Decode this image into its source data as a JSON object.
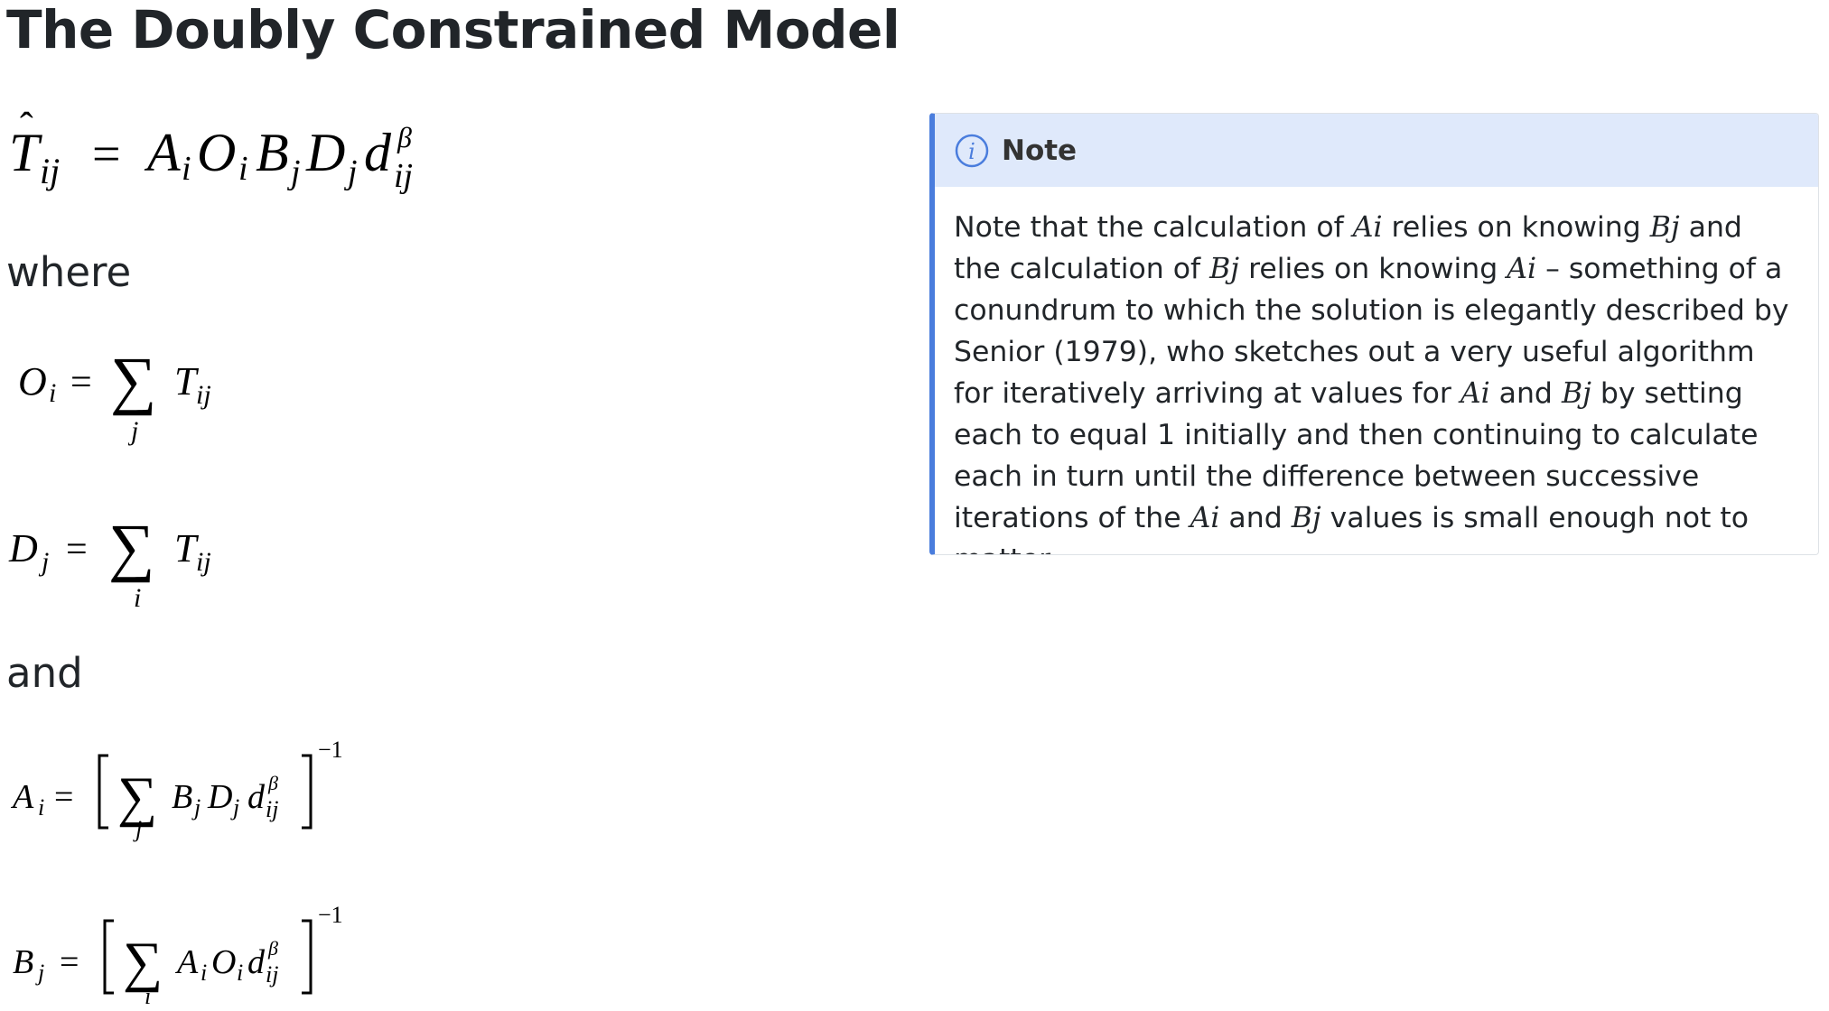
{
  "page": {
    "title": "The Doubly Constrained Model",
    "where_text": "where",
    "and_text": "and"
  },
  "equations": {
    "main": "T̂ij = Ai Oi Bj Dj dij^β",
    "origin_total": "Oi = Σj Tij",
    "destination_total": "Dj = Σi Tij",
    "balancing_a": "Ai = [Σj Bj Dj dij^β]^−1",
    "balancing_b": "Bj = [Σi Ai Oi dij^β]^−1"
  },
  "note": {
    "title": "Note",
    "icon": "info-icon",
    "accent_color": "#4a7ddd",
    "header_bg": "#dfe9fb",
    "segments": [
      {
        "text": "Note that the calculation of ",
        "italic": false
      },
      {
        "text": "Ai",
        "italic": true
      },
      {
        "text": " relies on knowing ",
        "italic": false
      },
      {
        "text": "Bj",
        "italic": true
      },
      {
        "text": " and the calculation of ",
        "italic": false
      },
      {
        "text": "Bj",
        "italic": true
      },
      {
        "text": " relies on knowing ",
        "italic": false
      },
      {
        "text": "Ai",
        "italic": true
      },
      {
        "text": " – something of a conundrum to which the solution is elegantly described by Senior (1979), who sketches out a very useful algorithm for iteratively arriving at values for ",
        "italic": false
      },
      {
        "text": "Ai",
        "italic": true
      },
      {
        "text": " and ",
        "italic": false
      },
      {
        "text": "Bj",
        "italic": true
      },
      {
        "text": " by setting each to equal 1 initially and then continuing to calculate each in turn until the difference between successive iterations of the ",
        "italic": false
      },
      {
        "text": "Ai",
        "italic": true
      },
      {
        "text": " and ",
        "italic": false
      },
      {
        "text": "Bj",
        "italic": true
      },
      {
        "text": " values is small enough not to matter.",
        "italic": false
      }
    ]
  }
}
